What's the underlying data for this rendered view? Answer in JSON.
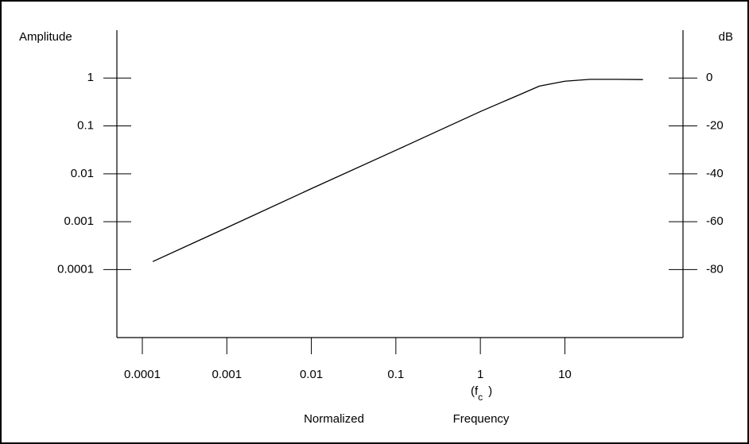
{
  "chart_data": {
    "type": "line",
    "ylabel": "Amplitude",
    "y2label": "dB",
    "xlabel_parts": [
      "Normalized",
      "Frequency"
    ],
    "corner_label": {
      "open": "(f",
      "subscript": "c",
      "close": ")",
      "at": 1
    },
    "x": [
      0.000133,
      0.001,
      0.01,
      0.1,
      1,
      3,
      5,
      10,
      20,
      40,
      84
    ],
    "values": [
      0.000147,
      0.00075,
      0.0049,
      0.031,
      0.2,
      0.46,
      0.68,
      0.86,
      0.94,
      0.94,
      0.93
    ],
    "color": "#000000",
    "xscale": "log",
    "yscale": "log",
    "xlim": [
      5e-05,
      250
    ],
    "ylim": [
      3.8e-06,
      10
    ],
    "y2lim": [
      -108.4,
      20
    ],
    "xticks": [
      0.0001,
      0.001,
      0.01,
      0.1,
      1,
      10
    ],
    "yticks": [
      1,
      0.1,
      0.01,
      0.001,
      0.0001
    ],
    "y2ticks": [
      0,
      -20,
      -40,
      -60,
      -80
    ],
    "grid": false
  }
}
